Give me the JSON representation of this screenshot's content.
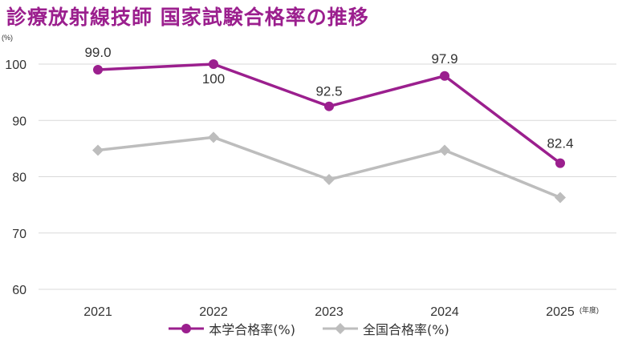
{
  "title": "診療放射線技師 国家試験合格率の推移",
  "colors": {
    "title": "#9B1F8E",
    "school": "#9B1F8E",
    "national": "#BDBDBD",
    "grid": "#D9D9D9"
  },
  "chart_data": {
    "type": "line",
    "title": "診療放射線技師 国家試験合格率の推移",
    "ylabel": "(%)",
    "xlabel": "(年度)",
    "categories": [
      "2021",
      "2022",
      "2023",
      "2024",
      "2025"
    ],
    "ylim": [
      60,
      100
    ],
    "yticks": [
      60,
      70,
      80,
      90,
      100
    ],
    "grid": true,
    "legend_position": "bottom",
    "series": [
      {
        "name": "本学合格率(%)",
        "values": [
          99.0,
          100,
          92.5,
          97.9,
          82.4
        ],
        "labels": [
          "99.0",
          "100",
          "92.5",
          "97.9",
          "82.4"
        ],
        "marker": "circle"
      },
      {
        "name": "全国合格率(%)",
        "values": [
          84.7,
          87.0,
          79.5,
          84.7,
          76.3
        ],
        "marker": "diamond"
      }
    ]
  }
}
